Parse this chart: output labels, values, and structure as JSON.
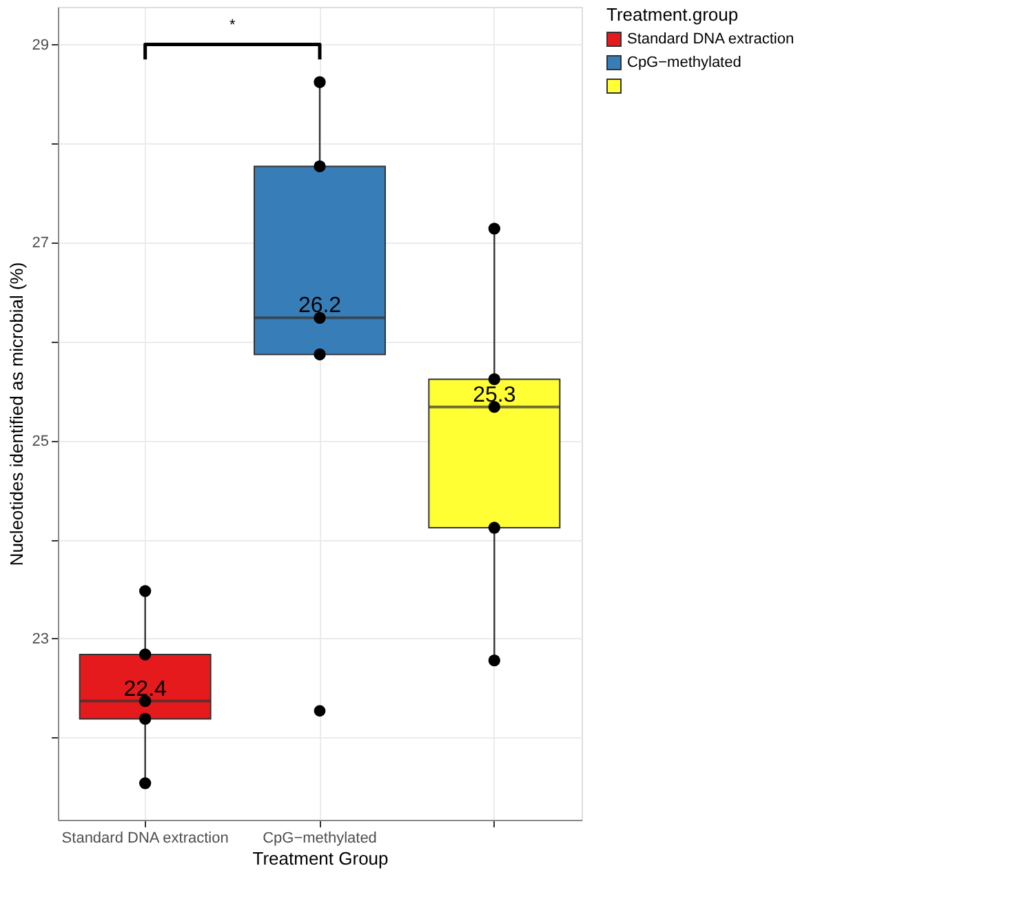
{
  "chart_data": {
    "type": "box",
    "xlabel": "Treatment Group",
    "ylabel": "Nucleotides identified as microbial (%)",
    "legend_title": "Treatment.group",
    "legend": "right",
    "grid": true,
    "categories": [
      "Standard DNA extraction",
      "CpG−methylated",
      null
    ],
    "value_labels": [
      "22.4",
      "26.2",
      "25.3"
    ],
    "series": [
      {
        "name": "Standard DNA extraction",
        "color": "#e41a1c",
        "boxes": [
          {
            "low": 21.54,
            "q1": 22.19,
            "median": 22.37,
            "q3": 22.84,
            "high": 23.48
          },
          null,
          null
        ]
      },
      {
        "name": "CpG−methylated",
        "color": "#377eb8",
        "boxes": [
          null,
          {
            "low": 25.87,
            "q1": 25.87,
            "median": 26.24,
            "q3": 27.77,
            "high": 28.62,
            "outliers": [
              22.27
            ]
          },
          null
        ]
      },
      {
        "color": "#ffff33",
        "boxes": [
          null,
          null,
          {
            "low": 22.78,
            "q1": 24.12,
            "median": 25.34,
            "q3": 25.62,
            "high": 27.14
          }
        ]
      },
      {
        "type": "scatter",
        "marker": "circle",
        "color": "#000000",
        "x": [
          "Standard DNA extraction",
          "Standard DNA extraction",
          "Standard DNA extraction",
          "Standard DNA extraction",
          "Standard DNA extraction"
        ],
        "values": [
          23.48,
          22.84,
          22.37,
          22.19,
          21.54
        ]
      },
      {
        "type": "scatter",
        "marker": "circle",
        "color": "#000000",
        "x": [
          "CpG−methylated",
          "CpG−methylated",
          "CpG−methylated",
          "CpG−methylated"
        ],
        "values": [
          28.62,
          27.77,
          26.24,
          25.87
        ]
      },
      {
        "type": "scatter",
        "marker": "circle",
        "color": "#000000",
        "x": [
          null,
          null,
          null,
          null,
          null
        ],
        "values": [
          27.14,
          25.62,
          25.34,
          24.12,
          22.78
        ]
      }
    ],
    "annotations": [
      "*"
    ],
    "ylim": [
      21.17,
      29.38
    ],
    "yticks": [
      {
        "value": 22,
        "label": null
      },
      23,
      {
        "value": 24,
        "label": null
      },
      25,
      {
        "value": 26,
        "label": null
      },
      27,
      {
        "value": 28,
        "label": null
      },
      29
    ]
  }
}
